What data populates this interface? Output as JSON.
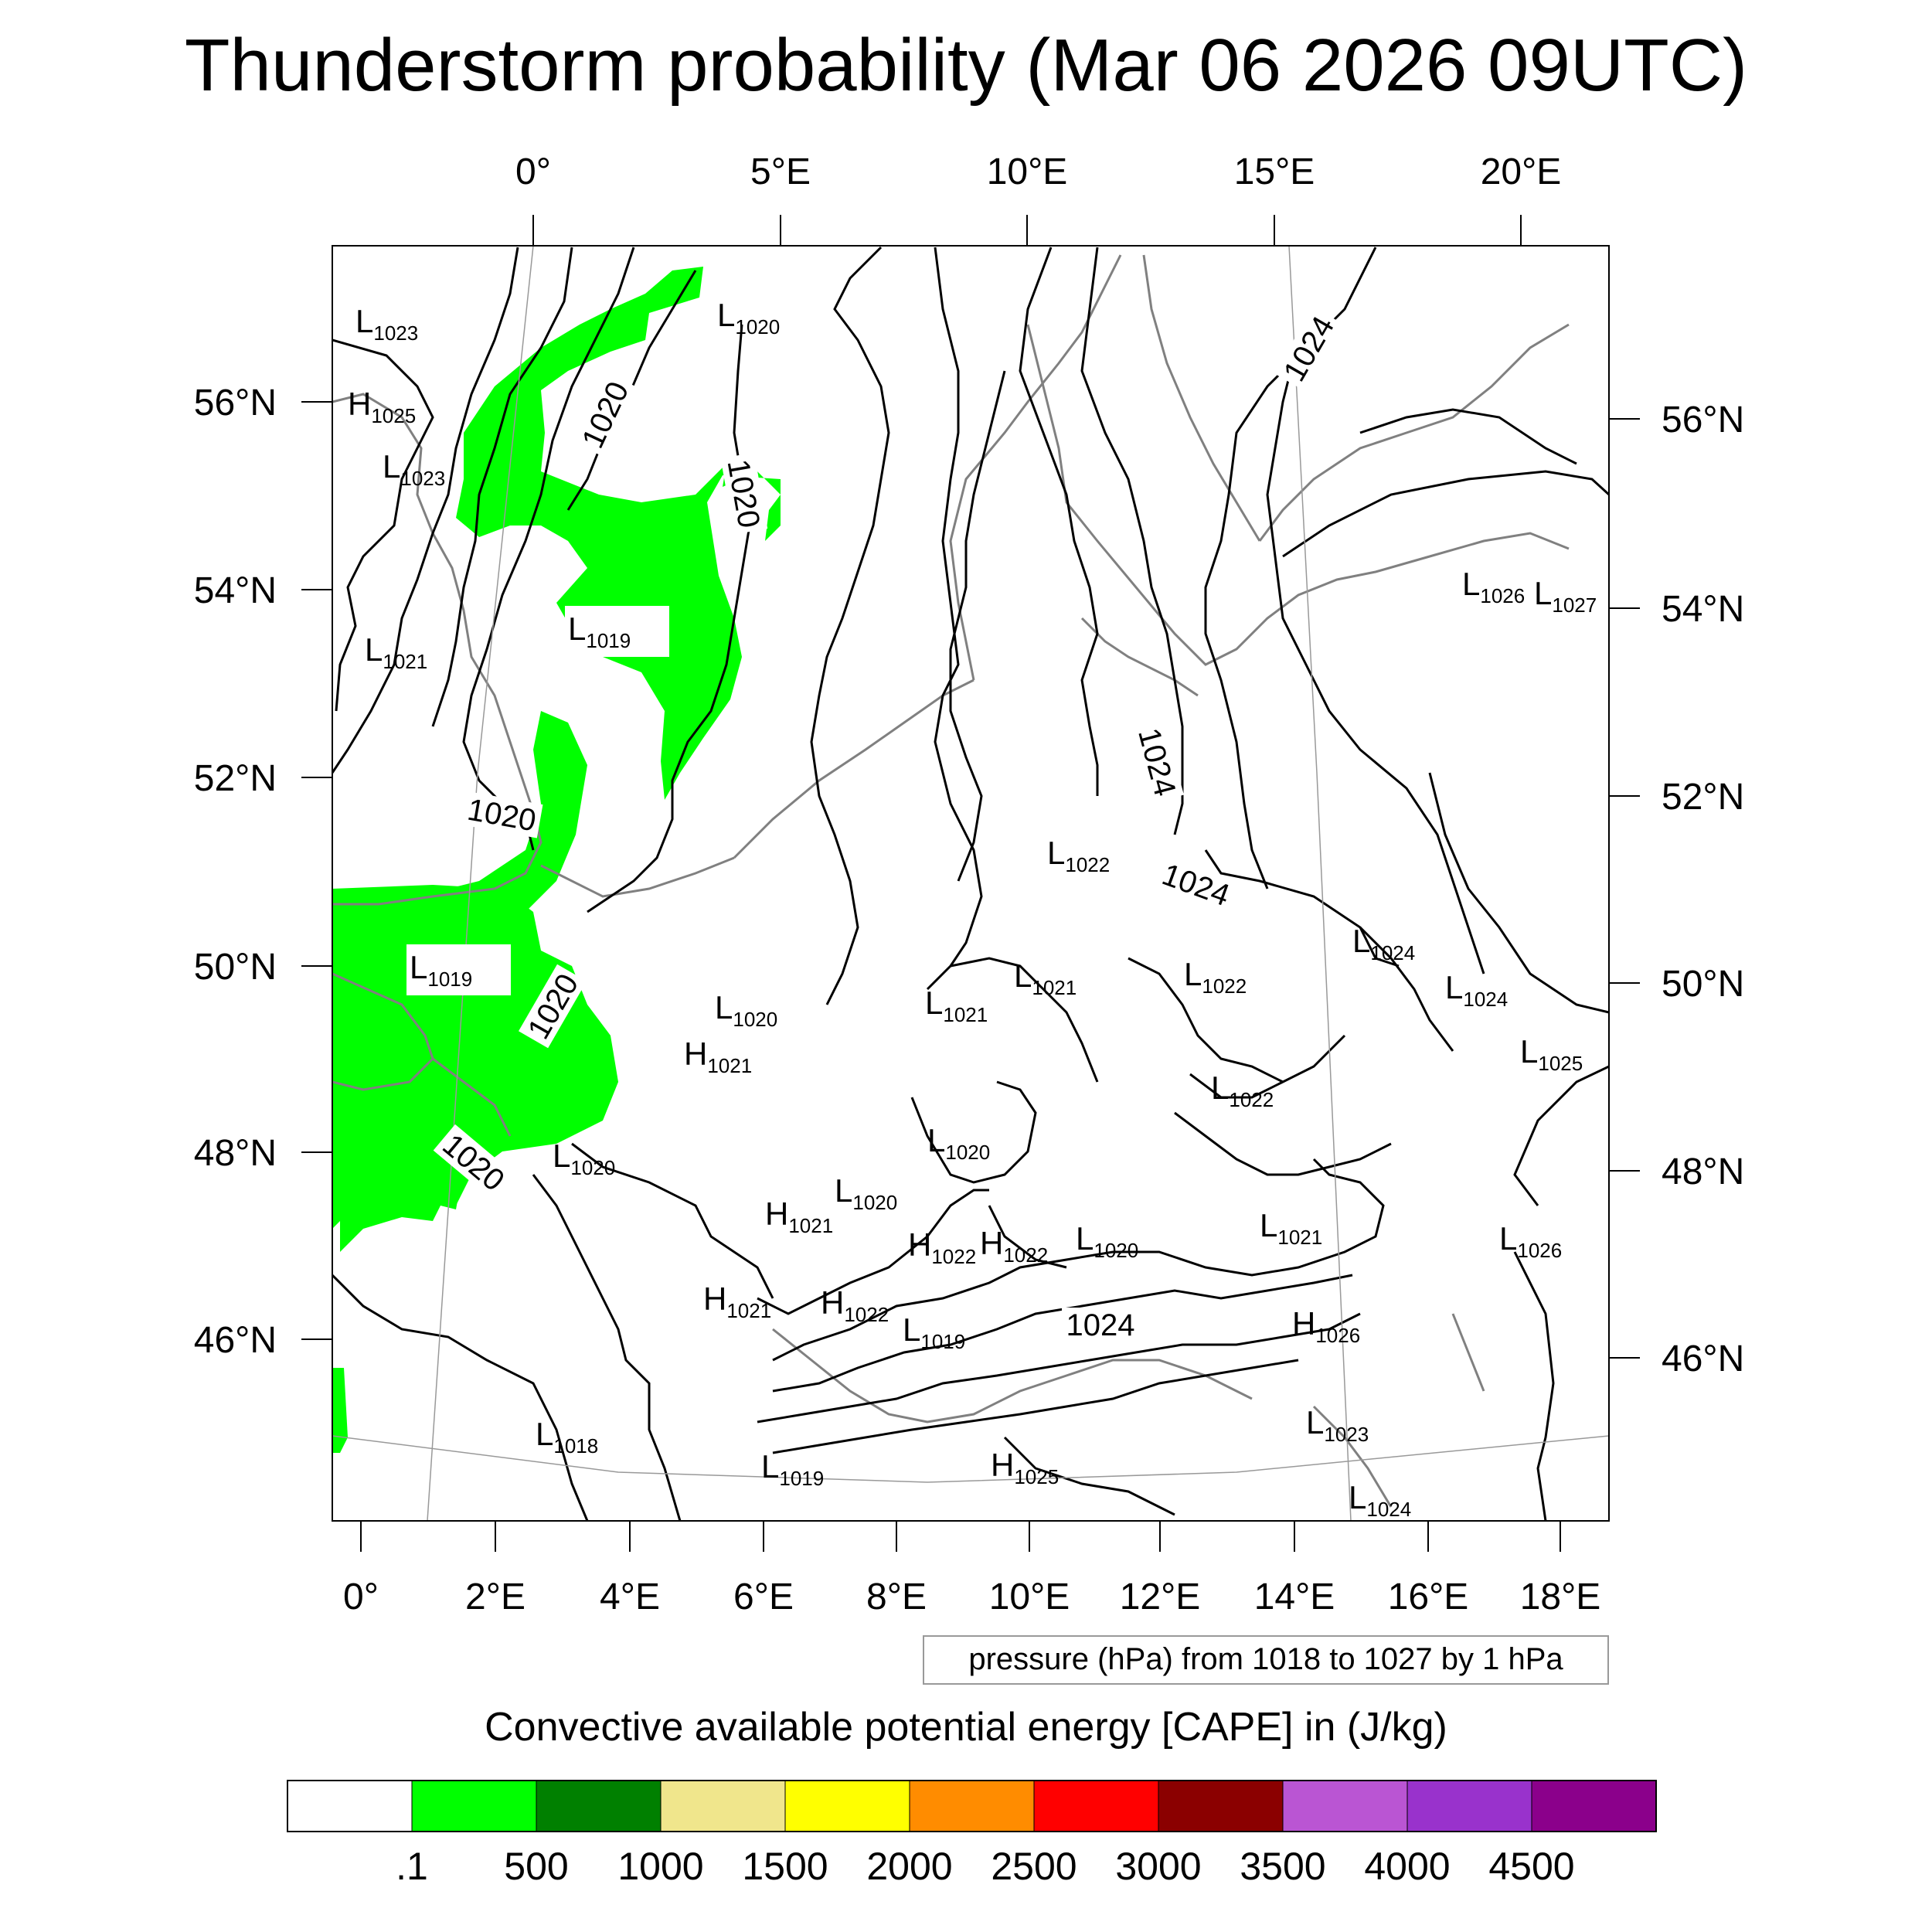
{
  "title": "Thunderstorm probability (Mar 06 2026 09UTC)",
  "top_lon_labels": [
    "0°",
    "5°E",
    "10°E",
    "15°E",
    "20°E"
  ],
  "bottom_lon_labels": [
    "0°",
    "2°E",
    "4°E",
    "6°E",
    "8°E",
    "10°E",
    "12°E",
    "14°E",
    "16°E",
    "18°E"
  ],
  "left_lat_labels": [
    "56°N",
    "54°N",
    "52°N",
    "50°N",
    "48°N",
    "46°N"
  ],
  "right_lat_labels": [
    "56°N",
    "54°N",
    "52°N",
    "50°N",
    "48°N",
    "46°N"
  ],
  "contour_info": "pressure (hPa) from 1018 to 1027 by 1 hPa",
  "cape_label": "Convective available potential energy [CAPE] in (J/kg)",
  "cape_colorbar": {
    "colors": [
      "#ffffff",
      "#00ff00",
      "#008000",
      "#f0e68c",
      "#ffff00",
      "#ff8c00",
      "#ff0000",
      "#8b0000",
      "#ba55d3",
      "#9932cc",
      "#8b008b"
    ],
    "labels": [
      ".1",
      "500",
      "1000",
      "1500",
      "2000",
      "2500",
      "3000",
      "3500",
      "4000",
      "4500"
    ]
  },
  "pressure_centers": [
    {
      "kind": "L",
      "value": "1023"
    },
    {
      "kind": "H",
      "value": "1025"
    },
    {
      "kind": "L",
      "value": "1023"
    },
    {
      "kind": "L",
      "value": "1021"
    },
    {
      "kind": "L",
      "value": "1020"
    },
    {
      "kind": "L",
      "value": "1019"
    },
    {
      "kind": "L",
      "value": "1019"
    },
    {
      "kind": "L",
      "value": "1020"
    },
    {
      "kind": "H",
      "value": "1021"
    },
    {
      "kind": "L",
      "value": "1020"
    },
    {
      "kind": "L",
      "value": "1020"
    },
    {
      "kind": "L",
      "value": "1020"
    },
    {
      "kind": "H",
      "value": "1021"
    },
    {
      "kind": "H",
      "value": "1022"
    },
    {
      "kind": "H",
      "value": "1022"
    },
    {
      "kind": "L",
      "value": "1020"
    },
    {
      "kind": "H",
      "value": "1021"
    },
    {
      "kind": "H",
      "value": "1022"
    },
    {
      "kind": "L",
      "value": "1019"
    },
    {
      "kind": "L",
      "value": "1018"
    },
    {
      "kind": "L",
      "value": "1019"
    },
    {
      "kind": "H",
      "value": "1025"
    },
    {
      "kind": "L",
      "value": "1021"
    },
    {
      "kind": "L",
      "value": "1021"
    },
    {
      "kind": "L",
      "value": "1022"
    },
    {
      "kind": "L",
      "value": "1022"
    },
    {
      "kind": "L",
      "value": "1022"
    },
    {
      "kind": "L",
      "value": "1021"
    },
    {
      "kind": "H",
      "value": "1026"
    },
    {
      "kind": "L",
      "value": "1023"
    },
    {
      "kind": "L",
      "value": "1024"
    },
    {
      "kind": "L",
      "value": "1024"
    },
    {
      "kind": "L",
      "value": "1024"
    },
    {
      "kind": "L",
      "value": "1025"
    },
    {
      "kind": "L",
      "value": "1026"
    },
    {
      "kind": "L",
      "value": "1027"
    },
    {
      "kind": "L",
      "value": "1026"
    }
  ],
  "isobar_labels": [
    "1020",
    "1020",
    "1020",
    "1020",
    "1020",
    "1024",
    "1024",
    "1024",
    "1024"
  ]
}
